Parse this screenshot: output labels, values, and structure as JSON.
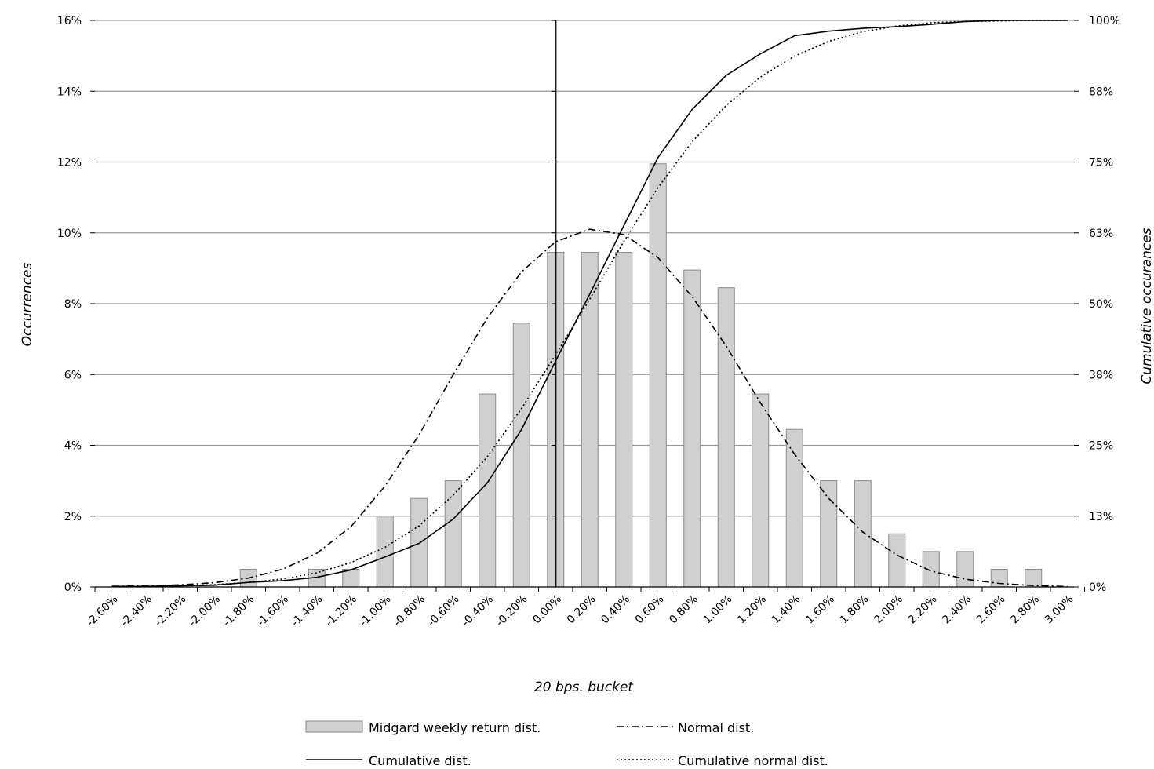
{
  "chart_data": {
    "type": "bar",
    "title": "",
    "xlabel": "20 bps. bucket",
    "ylabel": "Occurrences",
    "y2label": "Cumulative occurances",
    "ylim": [
      0,
      16
    ],
    "y2lim": [
      0,
      100
    ],
    "grid": true,
    "legend_position": "bottom",
    "y_ticks": [
      "0%",
      "2%",
      "4%",
      "6%",
      "8%",
      "10%",
      "12%",
      "14%",
      "16%"
    ],
    "y2_ticks": [
      "0%",
      "13%",
      "25%",
      "38%",
      "50%",
      "63%",
      "75%",
      "88%",
      "100%"
    ],
    "categories": [
      "-2.60%",
      "-2.40%",
      "-2.20%",
      "-2.00%",
      "-1.80%",
      "-1.60%",
      "-1.40%",
      "-1.20%",
      "-1.00%",
      "-0.80%",
      "-0.60%",
      "-0.40%",
      "-0.20%",
      "0.00%",
      "0.20%",
      "0.40%",
      "0.60%",
      "0.80%",
      "1.00%",
      "1.20%",
      "1.40%",
      "1.60%",
      "1.80%",
      "2.00%",
      "2.20%",
      "2.40%",
      "2.60%",
      "2.80%",
      "3.00%"
    ],
    "series": [
      {
        "name": "Midgard weekly return dist.",
        "kind": "bar",
        "axis": "left",
        "values": [
          0,
          0,
          0,
          0,
          0.5,
          0,
          0.5,
          0.5,
          2.0,
          2.5,
          3.0,
          5.45,
          7.45,
          9.45,
          9.45,
          9.45,
          11.95,
          8.95,
          8.45,
          5.45,
          4.45,
          3.0,
          3.0,
          1.5,
          1.0,
          1.0,
          0.5,
          0.5,
          0
        ]
      },
      {
        "name": "Normal dist.",
        "kind": "line",
        "style": "dash-dot",
        "axis": "left",
        "values": [
          0.02,
          0.03,
          0.06,
          0.12,
          0.25,
          0.5,
          0.95,
          1.7,
          2.85,
          4.3,
          6.0,
          7.6,
          8.9,
          9.75,
          10.1,
          9.95,
          9.3,
          8.2,
          6.8,
          5.2,
          3.75,
          2.5,
          1.55,
          0.9,
          0.45,
          0.22,
          0.1,
          0.04,
          0.01
        ]
      },
      {
        "name": "Cumulative dist.",
        "kind": "line",
        "style": "solid",
        "axis": "right",
        "values": [
          0.1,
          0.1,
          0.2,
          0.3,
          0.8,
          1.1,
          1.7,
          3.0,
          5.3,
          7.7,
          12.0,
          18.4,
          27.8,
          39.9,
          51.7,
          63.8,
          75.8,
          84.3,
          90.3,
          94.1,
          97.3,
          98.1,
          98.6,
          98.9,
          99.3,
          99.8,
          100.0,
          100.0,
          100.0
        ]
      },
      {
        "name": "Cumulative normal dist.",
        "kind": "line",
        "style": "dotted",
        "axis": "right",
        "values": [
          0.05,
          0.1,
          0.2,
          0.4,
          0.8,
          1.4,
          2.5,
          4.3,
          7.0,
          10.8,
          16.2,
          23.0,
          31.5,
          41.0,
          50.8,
          61.0,
          70.5,
          78.6,
          85.0,
          90.0,
          93.7,
          96.3,
          98.0,
          99.0,
          99.6,
          99.8,
          99.9,
          100.0,
          100.0
        ]
      }
    ]
  }
}
